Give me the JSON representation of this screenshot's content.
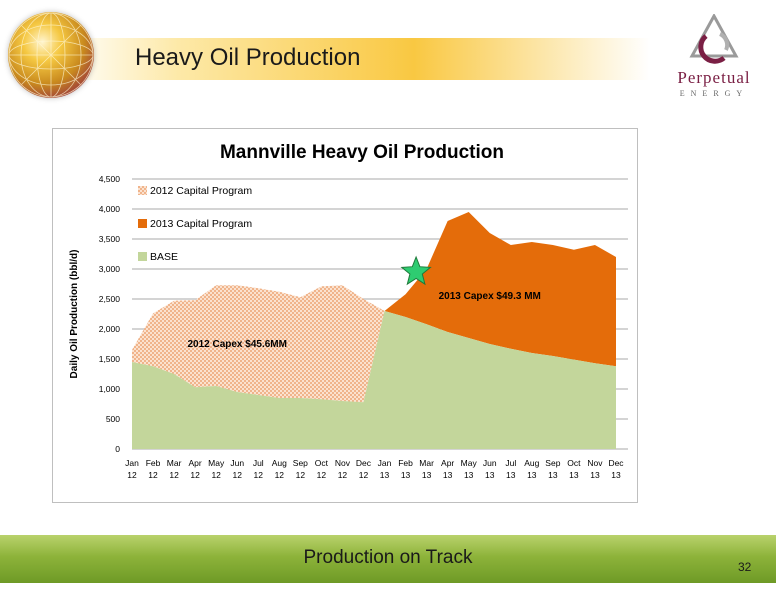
{
  "slide": {
    "title": "Heavy Oil Production",
    "footer": "Production on Track",
    "page_number": "32",
    "logo_name": "Perpetual",
    "logo_sub": "ENERGY"
  },
  "chart_data": {
    "type": "area",
    "title": "Mannville Heavy Oil Production",
    "ylabel": "Daily Oil Production (bbl/d)",
    "xlabel": "",
    "ylim": [
      0,
      4500
    ],
    "yticks": [
      0,
      500,
      1000,
      1500,
      2000,
      2500,
      3000,
      3500,
      4000,
      4500
    ],
    "categories": [
      [
        "Jan",
        "12"
      ],
      [
        "Feb",
        "12"
      ],
      [
        "Mar",
        "12"
      ],
      [
        "Apr",
        "12"
      ],
      [
        "May",
        "12"
      ],
      [
        "Jun",
        "12"
      ],
      [
        "Jul",
        "12"
      ],
      [
        "Aug",
        "12"
      ],
      [
        "Sep",
        "12"
      ],
      [
        "Oct",
        "12"
      ],
      [
        "Nov",
        "12"
      ],
      [
        "Dec",
        "12"
      ],
      [
        "Jan",
        "13"
      ],
      [
        "Feb",
        "13"
      ],
      [
        "Mar",
        "13"
      ],
      [
        "Apr",
        "13"
      ],
      [
        "May",
        "13"
      ],
      [
        "Jun",
        "13"
      ],
      [
        "Jul",
        "13"
      ],
      [
        "Aug",
        "13"
      ],
      [
        "Sep",
        "13"
      ],
      [
        "Oct",
        "13"
      ],
      [
        "Nov",
        "13"
      ],
      [
        "Dec",
        "13"
      ]
    ],
    "series": [
      {
        "name": "BASE",
        "color": "#c3d69b",
        "values": [
          1450,
          1380,
          1250,
          1030,
          1050,
          950,
          900,
          850,
          850,
          830,
          800,
          780,
          2300,
          2200,
          2080,
          1950,
          1850,
          1750,
          1670,
          1600,
          1550,
          1490,
          1430,
          1380
        ]
      },
      {
        "name": "2012 Capital Program",
        "color": "#f4b183",
        "pattern": "dots",
        "values": [
          200,
          880,
          1220,
          1450,
          1680,
          1780,
          1780,
          1770,
          1680,
          1880,
          1930,
          1720,
          0,
          0,
          0,
          0,
          0,
          0,
          0,
          0,
          0,
          0,
          0,
          0
        ]
      },
      {
        "name": "2013 Capital Program",
        "color": "#e46c0a",
        "values": [
          0,
          0,
          0,
          0,
          0,
          0,
          0,
          0,
          0,
          0,
          0,
          0,
          0,
          380,
          920,
          1850,
          2100,
          1850,
          1730,
          1850,
          1850,
          1830,
          1970,
          1820
        ]
      }
    ],
    "legend": {
      "placement": "top-left",
      "order": [
        "2012 Capital Program",
        "2013 Capital Program",
        "BASE"
      ]
    },
    "annotations": [
      {
        "text": "2012 Capex $45.6MM",
        "x_index": 5,
        "y": 1700
      },
      {
        "text": "2013 Capex $49.3 MM",
        "x_index": 17,
        "y": 2500
      }
    ],
    "marker": {
      "shape": "star",
      "x_index": 13.5,
      "y": 2950,
      "color": "#2ecc71"
    },
    "grid": true
  }
}
